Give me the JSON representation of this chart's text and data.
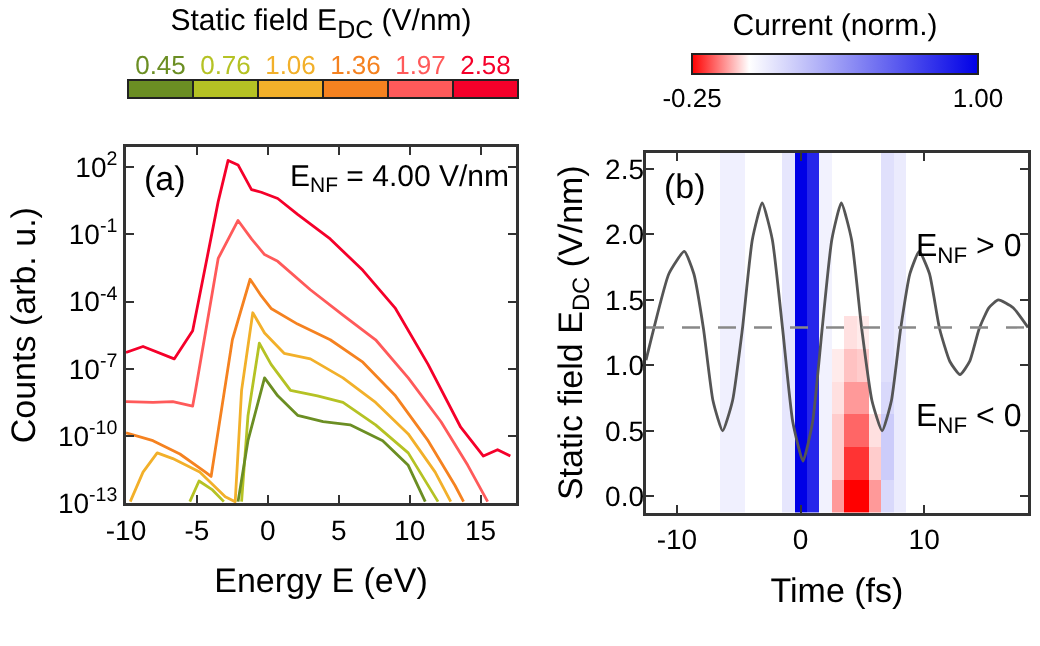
{
  "chart_data": [
    {
      "type": "line",
      "legend": "top",
      "legend_title": "Static field E$_{DC}$ (V/nm)",
      "xlabel": "Energy E (eV)",
      "ylabel": "Counts (arb. u.)",
      "log": "y",
      "xlim": [
        -10,
        17.5
      ],
      "xticks": [
        -10,
        -5,
        0,
        5,
        10,
        15
      ],
      "ylim": [
        1e-13,
        800
      ],
      "yticks": [
        {
          "value": 100,
          "label": "10$^{2}$"
        },
        {
          "value": 0.1,
          "label": "10$^{-1}$"
        },
        {
          "value": 0.0001,
          "label": "10$^{-4}$"
        },
        {
          "value": 1e-07,
          "label": "10$^{-7}$"
        },
        {
          "value": 1e-10,
          "label": "10$^{-10}$"
        },
        {
          "value": 1e-13,
          "label": "10$^{-13}$"
        }
      ],
      "annotations": [
        "(a)",
        "E$_{NF}$ = 4.00 V/nm"
      ],
      "series": [
        {
          "name": "0.45",
          "color": "#6b8e23",
          "x": [
            -2.1,
            -1.4,
            -0.23,
            0.7,
            2.1,
            3.9,
            5.8,
            8.1,
            9.9,
            11.1
          ],
          "values": [
            1.2e-13,
            6.3e-11,
            4e-08,
            6.3e-09,
            8.5e-10,
            4.5e-10,
            3.2e-10,
            6.3e-11,
            5e-12,
            1.2e-13
          ]
        },
        {
          "name": "0.76",
          "color": "#b5c224",
          "x": [
            -5.5,
            -4.85,
            -3.9,
            -3.1,
            -2.3,
            -1.85,
            -1.4,
            -0.6,
            0.23,
            1.6,
            3.5,
            5.3,
            7.6,
            9.9,
            12
          ],
          "values": [
            1.2e-13,
            1e-12,
            4e-13,
            1.2e-13,
            null,
            1.2e-13,
            7.9e-10,
            1.4e-06,
            1.6e-07,
            1.1e-08,
            6.3e-09,
            3.2e-09,
            3.2e-10,
            1.8e-11,
            1.2e-13
          ]
        },
        {
          "name": "1.06",
          "color": "#f2b02a",
          "x": [
            -9.7,
            -8.8,
            -7.8,
            -6.7,
            -4.8,
            -3.0,
            -2.3,
            -1.85,
            -1.06,
            -0.23,
            1.15,
            3,
            5.3,
            7.6,
            9.9,
            11.8,
            12.9
          ],
          "values": [
            1.2e-13,
            2.5e-12,
            1.8e-11,
            1e-11,
            2.5e-12,
            2e-13,
            1.2e-13,
            1.1e-08,
            3.2e-05,
            4e-06,
            5e-07,
            2.8e-07,
            4e-08,
            3.2e-09,
            1.26e-10,
            2.5e-12,
            1.2e-13
          ]
        },
        {
          "name": "1.36",
          "color": "#f58220",
          "x": [
            -10,
            -8.1,
            -6.2,
            -4.4,
            -4.0,
            -2.5,
            -1.25,
            -0.46,
            0.23,
            2.1,
            4.4,
            6.7,
            9,
            11.3,
            13.2,
            13.8
          ],
          "values": [
            1.4e-10,
            6.3e-11,
            1.6e-11,
            2.5e-12,
            1.6e-12,
            2e-06,
            0.001,
            0.00018,
            5e-05,
            1e-05,
            2e-06,
            2e-07,
            6.3e-09,
            6.3e-11,
            6.3e-13,
            1.2e-13
          ]
        },
        {
          "name": "1.97",
          "color": "#ff5a5a",
          "x": [
            -10,
            -8.1,
            -6.7,
            -5.3,
            -5.1,
            -3.5,
            -2.1,
            -1.15,
            -0.23,
            0.7,
            3,
            5.3,
            7.6,
            9.9,
            12.2,
            14.1,
            15.5
          ],
          "values": [
            3.5e-09,
            3.2e-09,
            3.5e-09,
            2.2e-09,
            1.1e-08,
            0.0085,
            0.42,
            0.063,
            0.0126,
            0.0063,
            0.00034,
            2.5e-05,
            2e-06,
            4e-08,
            4.5e-10,
            5e-12,
            1.2e-13
          ]
        },
        {
          "name": "2.58",
          "color": "#f5002a",
          "x": [
            -10,
            -8.8,
            -6.6,
            -5.3,
            -3.5,
            -2.8,
            -2.1,
            -1.15,
            -0.46,
            0.7,
            2.1,
            4.4,
            6.7,
            9,
            11.3,
            13.6,
            15.2,
            16.2,
            17.1
          ],
          "values": [
            5.4e-07,
            1e-06,
            2.8e-07,
            5e-06,
            2.9,
            200,
            126,
            10,
            7.6,
            4,
            0.79,
            0.063,
            0.0025,
            5e-05,
            1.6e-07,
            2.5e-10,
            1.3e-11,
            2.5e-11,
            1.3e-11
          ]
        }
      ]
    },
    {
      "type": "heatmap",
      "xlabel": "Time (fs)",
      "clabel": "Current (norm.)",
      "tick_labels": "x",
      "xlim": [
        -12.5,
        18.4
      ],
      "xticks": [
        -10,
        0,
        10
      ],
      "clim": [
        -0.25,
        1
      ],
      "cticks": [
        -0.25,
        {
          "value": 1,
          "label": "1.00"
        }
      ],
      "x": [
        -12,
        -11,
        -10,
        -9,
        -8,
        -7,
        -6,
        -5,
        -4,
        -3,
        -2,
        -1,
        0,
        1,
        2,
        3,
        4,
        5,
        6,
        7,
        8,
        9,
        10,
        11,
        12,
        13,
        14,
        15,
        16,
        17,
        18
      ],
      "y_categories": [
        null,
        null,
        null,
        null,
        null,
        null,
        null,
        null,
        null,
        null,
        null
      ],
      "cells": [
        [
          0,
          0,
          0,
          0,
          0,
          0,
          0.06,
          0.06,
          0,
          0,
          0,
          0.1,
          1,
          0.85,
          0.05,
          0,
          0,
          0,
          0,
          0.12,
          0.08,
          0,
          0,
          0,
          0,
          0,
          0,
          0,
          0,
          0,
          0
        ],
        [
          0,
          0,
          0,
          0,
          0,
          0,
          0.06,
          0.06,
          0,
          0,
          0,
          0.1,
          1,
          0.85,
          0.05,
          0,
          0,
          0,
          0,
          0.12,
          0.08,
          0,
          0,
          0,
          0,
          0,
          0,
          0,
          0,
          0,
          0
        ],
        [
          0,
          0,
          0,
          0,
          0,
          0,
          0.06,
          0.06,
          0,
          0,
          0,
          0.1,
          1,
          0.85,
          0.05,
          0,
          0,
          0,
          0,
          0.12,
          0.08,
          0,
          0,
          0,
          0,
          0,
          0,
          0,
          0,
          0,
          0
        ],
        [
          0,
          0,
          0,
          0,
          0,
          0,
          0.06,
          0.06,
          0,
          0,
          0,
          0.1,
          1,
          0.85,
          0.05,
          0,
          0,
          0,
          0,
          0.12,
          0.08,
          0,
          0,
          0,
          0,
          0,
          0,
          0,
          0,
          0,
          0
        ],
        [
          0,
          0,
          0,
          0,
          0,
          0,
          0.06,
          0.06,
          0,
          0,
          0,
          0.1,
          1,
          0.85,
          0.05,
          0,
          0,
          0,
          0,
          0.12,
          0.08,
          0,
          0,
          0,
          0,
          0,
          0,
          0,
          0,
          0,
          0
        ],
        [
          0,
          0,
          0,
          0,
          0,
          0,
          0.06,
          0.06,
          0,
          0,
          0,
          0.1,
          1,
          0.85,
          0.05,
          0,
          -0.03,
          -0.02,
          0,
          0.12,
          0.08,
          0,
          0,
          0,
          0,
          0,
          0,
          0,
          0,
          0,
          0
        ],
        [
          0,
          0,
          0,
          0,
          0,
          0,
          0.06,
          0.06,
          0,
          0,
          0,
          0.1,
          1,
          0.85,
          0.05,
          -0.02,
          -0.06,
          -0.05,
          0,
          0.12,
          0.08,
          0,
          0,
          0,
          0,
          0,
          0,
          0,
          0,
          0,
          0
        ],
        [
          0,
          0,
          0,
          0,
          0,
          0,
          0.06,
          0.06,
          0,
          0,
          0,
          0.1,
          1,
          0.85,
          0.05,
          -0.03,
          -0.1,
          -0.1,
          0,
          0.15,
          0.08,
          0,
          0,
          0,
          0,
          0,
          0,
          0,
          0,
          0,
          0
        ],
        [
          0,
          0,
          0,
          0,
          0,
          0,
          0.06,
          0.06,
          0,
          0,
          0,
          0.1,
          1,
          0.85,
          0.05,
          -0.05,
          -0.15,
          -0.15,
          -0.03,
          0.2,
          0.08,
          0,
          0,
          0,
          0,
          0,
          0,
          0,
          0,
          0,
          0
        ],
        [
          0,
          0,
          0,
          0,
          0,
          0,
          0.06,
          0.06,
          0,
          0,
          0,
          0.1,
          1,
          0.85,
          0.05,
          -0.05,
          -0.2,
          -0.2,
          -0.05,
          0.2,
          0.08,
          0,
          0,
          0,
          0,
          0,
          0,
          0,
          0,
          0,
          0
        ],
        [
          0,
          0,
          0,
          0,
          0,
          0,
          0.06,
          0.06,
          0,
          0,
          0,
          0.1,
          1,
          0.85,
          0.05,
          -0.1,
          -0.25,
          -0.25,
          -0.1,
          0.15,
          0.08,
          0,
          0,
          0,
          0,
          0,
          0,
          0,
          0,
          0,
          0
        ]
      ],
      "annotations": [
        "(b)",
        "E$_{NF}$ > 0",
        "E$_{NF}$ < 0"
      ]
    },
    {
      "type": "line",
      "tick_labels": "y",
      "ylabel": "Static field E$_{DC}$ (V/nm)",
      "xlim": [
        -12.5,
        18.4
      ],
      "ylim": [
        -0.125,
        2.625
      ],
      "yticks": [
        {
          "value": 0,
          "label": "0.0"
        },
        {
          "value": 0.5,
          "label": "0.5"
        },
        {
          "value": 1,
          "label": "1.0"
        },
        {
          "value": 1.5,
          "label": "1.5"
        },
        {
          "value": 2,
          "label": "2.0"
        },
        {
          "value": 2.5,
          "label": "2.5"
        }
      ],
      "series": [
        {
          "color": "#555555",
          "x": [
            -12.5,
            -11.9,
            -10.65,
            -9.4,
            -8.63,
            -7.85,
            -7.08,
            -6.3,
            -5.5,
            -4.7,
            -3.9,
            -3.1,
            -2.28,
            -1.45,
            -0.63,
            0.2,
            0.98,
            1.75,
            2.53,
            3.3,
            4.13,
            4.95,
            5.78,
            6.6,
            7.35,
            8.1,
            8.85,
            9.6,
            10.43,
            11.25,
            12.08,
            12.9,
            13.68,
            14.45,
            15.23,
            16,
            17.2,
            18.4
          ],
          "values": [
            1.04,
            1.27,
            1.7,
            1.87,
            1.7,
            1.28,
            0.73,
            0.5,
            0.73,
            1.28,
            1.96,
            2.24,
            1.96,
            1.28,
            0.57,
            0.27,
            0.57,
            1.28,
            1.96,
            2.24,
            1.96,
            1.28,
            0.73,
            0.5,
            0.73,
            1.28,
            1.7,
            1.87,
            1.7,
            1.28,
            1.03,
            0.93,
            1.03,
            1.28,
            1.44,
            1.5,
            1.44,
            1.29
          ]
        }
      ],
      "ref_lines": [
        {
          "axis": "y",
          "value": 1.29,
          "color": "#888888",
          "line_style": "dashed"
        }
      ]
    }
  ]
}
